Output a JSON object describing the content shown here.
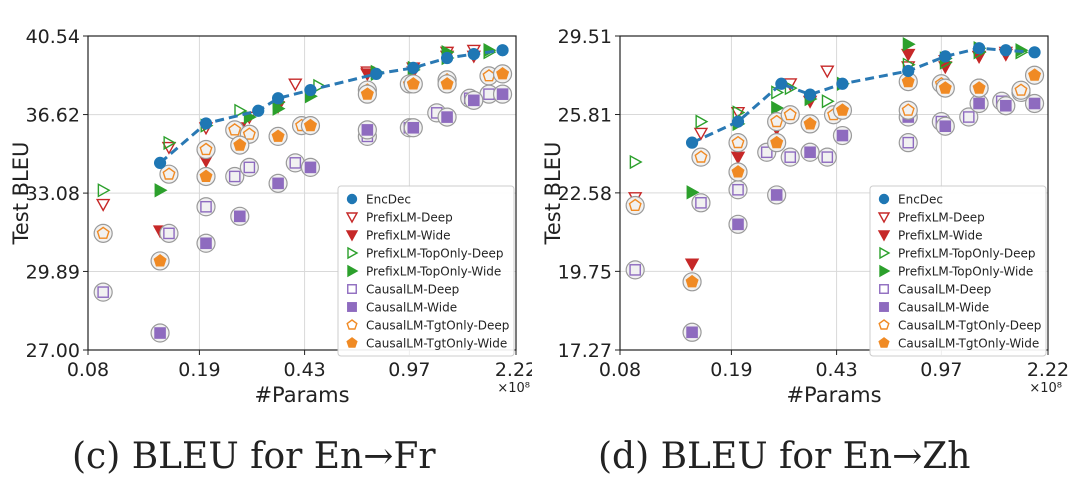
{
  "colors": {
    "blue": "#1f77b4",
    "red": "#c62828",
    "green": "#2ca02c",
    "purple": "#8e6bbf",
    "orange": "#f08a24",
    "dash": "#2a79b4"
  },
  "chart_data": [
    {
      "id": "c",
      "type": "scatter",
      "xlabel": "#Params",
      "ylabel": "Test BLEU",
      "x_multiplier": "×10⁸",
      "xlim": [
        0.08,
        2.22
      ],
      "ylim": [
        27.0,
        40.54
      ],
      "x_ticks": [
        "0.08",
        "0.19",
        "0.43",
        "0.97",
        "2.22"
      ],
      "y_ticks": [
        "27.00",
        "29.89",
        "33.08",
        "36.62",
        "40.54"
      ],
      "caption": "(c)  BLEU for En→Fr",
      "legend": [
        "EncDec",
        "PrefixLM-Deep",
        "PrefixLM-Wide",
        "PrefixLM-TopOnly-Deep",
        "PrefixLM-TopOnly-Wide",
        "CausalLM-Deep",
        "CausalLM-Wide",
        "CausalLM-TgtOnly-Deep",
        "CausalLM-TgtOnly-Wide"
      ],
      "series": [
        {
          "name": "EncDec",
          "marker": "circle",
          "line": true,
          "points": [
            [
              0.14,
              34.4
            ],
            [
              0.2,
              36.2
            ],
            [
              0.3,
              36.8
            ],
            [
              0.35,
              37.4
            ],
            [
              0.45,
              37.8
            ],
            [
              0.75,
              38.6
            ],
            [
              1.0,
              38.9
            ],
            [
              1.3,
              39.4
            ],
            [
              1.6,
              39.6
            ],
            [
              2.0,
              39.8
            ]
          ]
        },
        {
          "name": "PrefixLM-Deep",
          "marker": "tri-down-open",
          "points": [
            [
              0.09,
              32.6
            ],
            [
              0.15,
              35.1
            ],
            [
              0.2,
              36.0
            ],
            [
              0.28,
              36.5
            ],
            [
              0.4,
              38.1
            ],
            [
              0.7,
              38.7
            ],
            [
              1.0,
              38.9
            ],
            [
              1.3,
              39.7
            ],
            [
              1.6,
              39.8
            ]
          ]
        },
        {
          "name": "PrefixLM-Wide",
          "marker": "tri-down-filled",
          "points": [
            [
              0.14,
              31.5
            ],
            [
              0.2,
              34.5
            ],
            [
              0.26,
              36.0
            ],
            [
              0.35,
              37.0
            ],
            [
              0.7,
              38.6
            ],
            [
              1.0,
              38.7
            ],
            [
              1.3,
              39.5
            ],
            [
              1.6,
              39.5
            ]
          ]
        },
        {
          "name": "PrefixLM-TopOnly-Deep",
          "marker": "tri-right-open",
          "points": [
            [
              0.09,
              33.2
            ],
            [
              0.15,
              35.3
            ],
            [
              0.2,
              36.1
            ],
            [
              0.26,
              36.8
            ],
            [
              0.35,
              37.2
            ],
            [
              0.48,
              38.0
            ],
            [
              0.75,
              38.6
            ],
            [
              1.0,
              38.9
            ],
            [
              1.3,
              39.4
            ],
            [
              1.8,
              39.7
            ]
          ]
        },
        {
          "name": "PrefixLM-TopOnly-Wide",
          "marker": "tri-right-filled",
          "points": [
            [
              0.14,
              33.2
            ],
            [
              0.2,
              35.0
            ],
            [
              0.28,
              36.5
            ],
            [
              0.35,
              36.9
            ],
            [
              0.45,
              37.5
            ],
            [
              0.75,
              38.7
            ],
            [
              1.0,
              38.8
            ],
            [
              1.3,
              39.7
            ],
            [
              1.8,
              39.8
            ]
          ]
        },
        {
          "name": "CausalLM-Deep",
          "marker": "square-open",
          "points": [
            [
              0.09,
              29.1
            ],
            [
              0.15,
              31.4
            ],
            [
              0.2,
              32.5
            ],
            [
              0.25,
              33.8
            ],
            [
              0.28,
              34.2
            ],
            [
              0.4,
              34.4
            ],
            [
              0.7,
              35.6
            ],
            [
              0.97,
              36.0
            ],
            [
              1.2,
              36.7
            ],
            [
              1.55,
              37.4
            ],
            [
              1.8,
              37.6
            ]
          ]
        },
        {
          "name": "CausalLM-Wide",
          "marker": "square-filled",
          "points": [
            [
              0.14,
              27.6
            ],
            [
              0.2,
              31.0
            ],
            [
              0.26,
              32.1
            ],
            [
              0.35,
              33.5
            ],
            [
              0.45,
              34.2
            ],
            [
              0.7,
              35.9
            ],
            [
              1.0,
              36.0
            ],
            [
              1.3,
              36.5
            ],
            [
              1.6,
              37.3
            ],
            [
              2.0,
              37.6
            ]
          ]
        },
        {
          "name": "CausalLM-TgtOnly-Deep",
          "marker": "pentagon-open",
          "points": [
            [
              0.09,
              31.4
            ],
            [
              0.15,
              33.9
            ],
            [
              0.2,
              35.0
            ],
            [
              0.25,
              35.9
            ],
            [
              0.28,
              35.7
            ],
            [
              0.42,
              36.1
            ],
            [
              0.7,
              37.8
            ],
            [
              0.97,
              38.1
            ],
            [
              1.3,
              38.3
            ],
            [
              1.8,
              38.5
            ]
          ]
        },
        {
          "name": "CausalLM-TgtOnly-Wide",
          "marker": "pentagon-filled",
          "points": [
            [
              0.14,
              30.3
            ],
            [
              0.2,
              33.8
            ],
            [
              0.26,
              35.2
            ],
            [
              0.35,
              35.6
            ],
            [
              0.45,
              36.1
            ],
            [
              0.7,
              37.6
            ],
            [
              1.0,
              38.1
            ],
            [
              1.3,
              38.1
            ],
            [
              2.0,
              38.6
            ]
          ]
        }
      ]
    },
    {
      "id": "d",
      "type": "scatter",
      "xlabel": "#Params",
      "ylabel": "Test BLEU",
      "x_multiplier": "×10⁸",
      "xlim": [
        0.08,
        2.22
      ],
      "ylim": [
        17.27,
        29.51
      ],
      "x_ticks": [
        "0.08",
        "0.19",
        "0.43",
        "0.97",
        "2.22"
      ],
      "y_ticks": [
        "17.27",
        "19.75",
        "22.58",
        "25.81",
        "29.51"
      ],
      "caption": "(d)  BLEU for En→Zh",
      "legend": [
        "EncDec",
        "PrefixLM-Deep",
        "PrefixLM-Wide",
        "PrefixLM-TopOnly-Deep",
        "PrefixLM-TopOnly-Wide",
        "CausalLM-Deep",
        "CausalLM-Wide",
        "CausalLM-TgtOnly-Deep",
        "CausalLM-TgtOnly-Wide"
      ],
      "series": [
        {
          "name": "EncDec",
          "marker": "circle",
          "line": true,
          "points": [
            [
              0.14,
              24.6
            ],
            [
              0.2,
              25.5
            ],
            [
              0.28,
              27.2
            ],
            [
              0.35,
              26.7
            ],
            [
              0.45,
              27.2
            ],
            [
              0.75,
              27.8
            ],
            [
              1.0,
              28.5
            ],
            [
              1.3,
              28.9
            ],
            [
              1.6,
              28.8
            ],
            [
              2.0,
              28.7
            ]
          ]
        },
        {
          "name": "PrefixLM-Deep",
          "marker": "tri-down-open",
          "points": [
            [
              0.09,
              22.4
            ],
            [
              0.15,
              25.0
            ],
            [
              0.2,
              25.9
            ],
            [
              0.3,
              27.2
            ],
            [
              0.4,
              27.8
            ],
            [
              0.75,
              28.0
            ],
            [
              1.0,
              28.3
            ],
            [
              1.3,
              28.5
            ],
            [
              1.6,
              28.6
            ]
          ]
        },
        {
          "name": "PrefixLM-Wide",
          "marker": "tri-down-filled",
          "points": [
            [
              0.14,
              20.0
            ],
            [
              0.2,
              24.0
            ],
            [
              0.27,
              25.2
            ],
            [
              0.35,
              26.4
            ],
            [
              0.75,
              28.6
            ],
            [
              1.0,
              28.0
            ],
            [
              1.3,
              28.5
            ],
            [
              1.6,
              28.7
            ]
          ]
        },
        {
          "name": "PrefixLM-TopOnly-Deep",
          "marker": "tri-right-open",
          "points": [
            [
              0.09,
              23.8
            ],
            [
              0.15,
              25.5
            ],
            [
              0.2,
              25.9
            ],
            [
              0.27,
              26.8
            ],
            [
              0.3,
              27.0
            ],
            [
              0.4,
              26.4
            ],
            [
              0.75,
              28.1
            ],
            [
              1.0,
              28.2
            ],
            [
              1.3,
              28.7
            ],
            [
              1.8,
              28.7
            ]
          ]
        },
        {
          "name": "PrefixLM-TopOnly-Wide",
          "marker": "tri-right-filled",
          "points": [
            [
              0.14,
              22.6
            ],
            [
              0.2,
              25.4
            ],
            [
              0.27,
              26.1
            ],
            [
              0.35,
              26.5
            ],
            [
              0.45,
              27.2
            ],
            [
              0.75,
              29.1
            ],
            [
              1.0,
              28.4
            ],
            [
              1.3,
              28.9
            ],
            [
              1.8,
              28.8
            ]
          ]
        },
        {
          "name": "CausalLM-Deep",
          "marker": "square-open",
          "points": [
            [
              0.09,
              19.8
            ],
            [
              0.15,
              22.2
            ],
            [
              0.2,
              22.7
            ],
            [
              0.25,
              24.2
            ],
            [
              0.3,
              24.0
            ],
            [
              0.4,
              24.0
            ],
            [
              0.75,
              24.6
            ],
            [
              0.97,
              25.5
            ],
            [
              1.2,
              25.7
            ],
            [
              1.55,
              26.4
            ],
            [
              1.8,
              26.8
            ]
          ]
        },
        {
          "name": "CausalLM-Wide",
          "marker": "square-filled",
          "points": [
            [
              0.14,
              17.8
            ],
            [
              0.2,
              21.4
            ],
            [
              0.27,
              22.5
            ],
            [
              0.35,
              24.2
            ],
            [
              0.45,
              24.9
            ],
            [
              0.75,
              25.7
            ],
            [
              1.0,
              25.3
            ],
            [
              1.3,
              26.3
            ],
            [
              1.6,
              26.2
            ],
            [
              2.0,
              26.3
            ]
          ]
        },
        {
          "name": "CausalLM-TgtOnly-Deep",
          "marker": "pentagon-open",
          "points": [
            [
              0.09,
              22.1
            ],
            [
              0.15,
              24.0
            ],
            [
              0.2,
              24.6
            ],
            [
              0.27,
              25.5
            ],
            [
              0.3,
              25.8
            ],
            [
              0.42,
              25.8
            ],
            [
              0.75,
              26.0
            ],
            [
              0.97,
              27.2
            ],
            [
              1.3,
              27.0
            ],
            [
              1.8,
              26.9
            ]
          ]
        },
        {
          "name": "CausalLM-TgtOnly-Wide",
          "marker": "pentagon-filled",
          "points": [
            [
              0.14,
              19.4
            ],
            [
              0.2,
              23.4
            ],
            [
              0.27,
              24.6
            ],
            [
              0.35,
              25.4
            ],
            [
              0.45,
              26.0
            ],
            [
              0.75,
              27.3
            ],
            [
              1.0,
              27.0
            ],
            [
              1.3,
              27.0
            ],
            [
              2.0,
              27.6
            ]
          ]
        }
      ]
    }
  ]
}
